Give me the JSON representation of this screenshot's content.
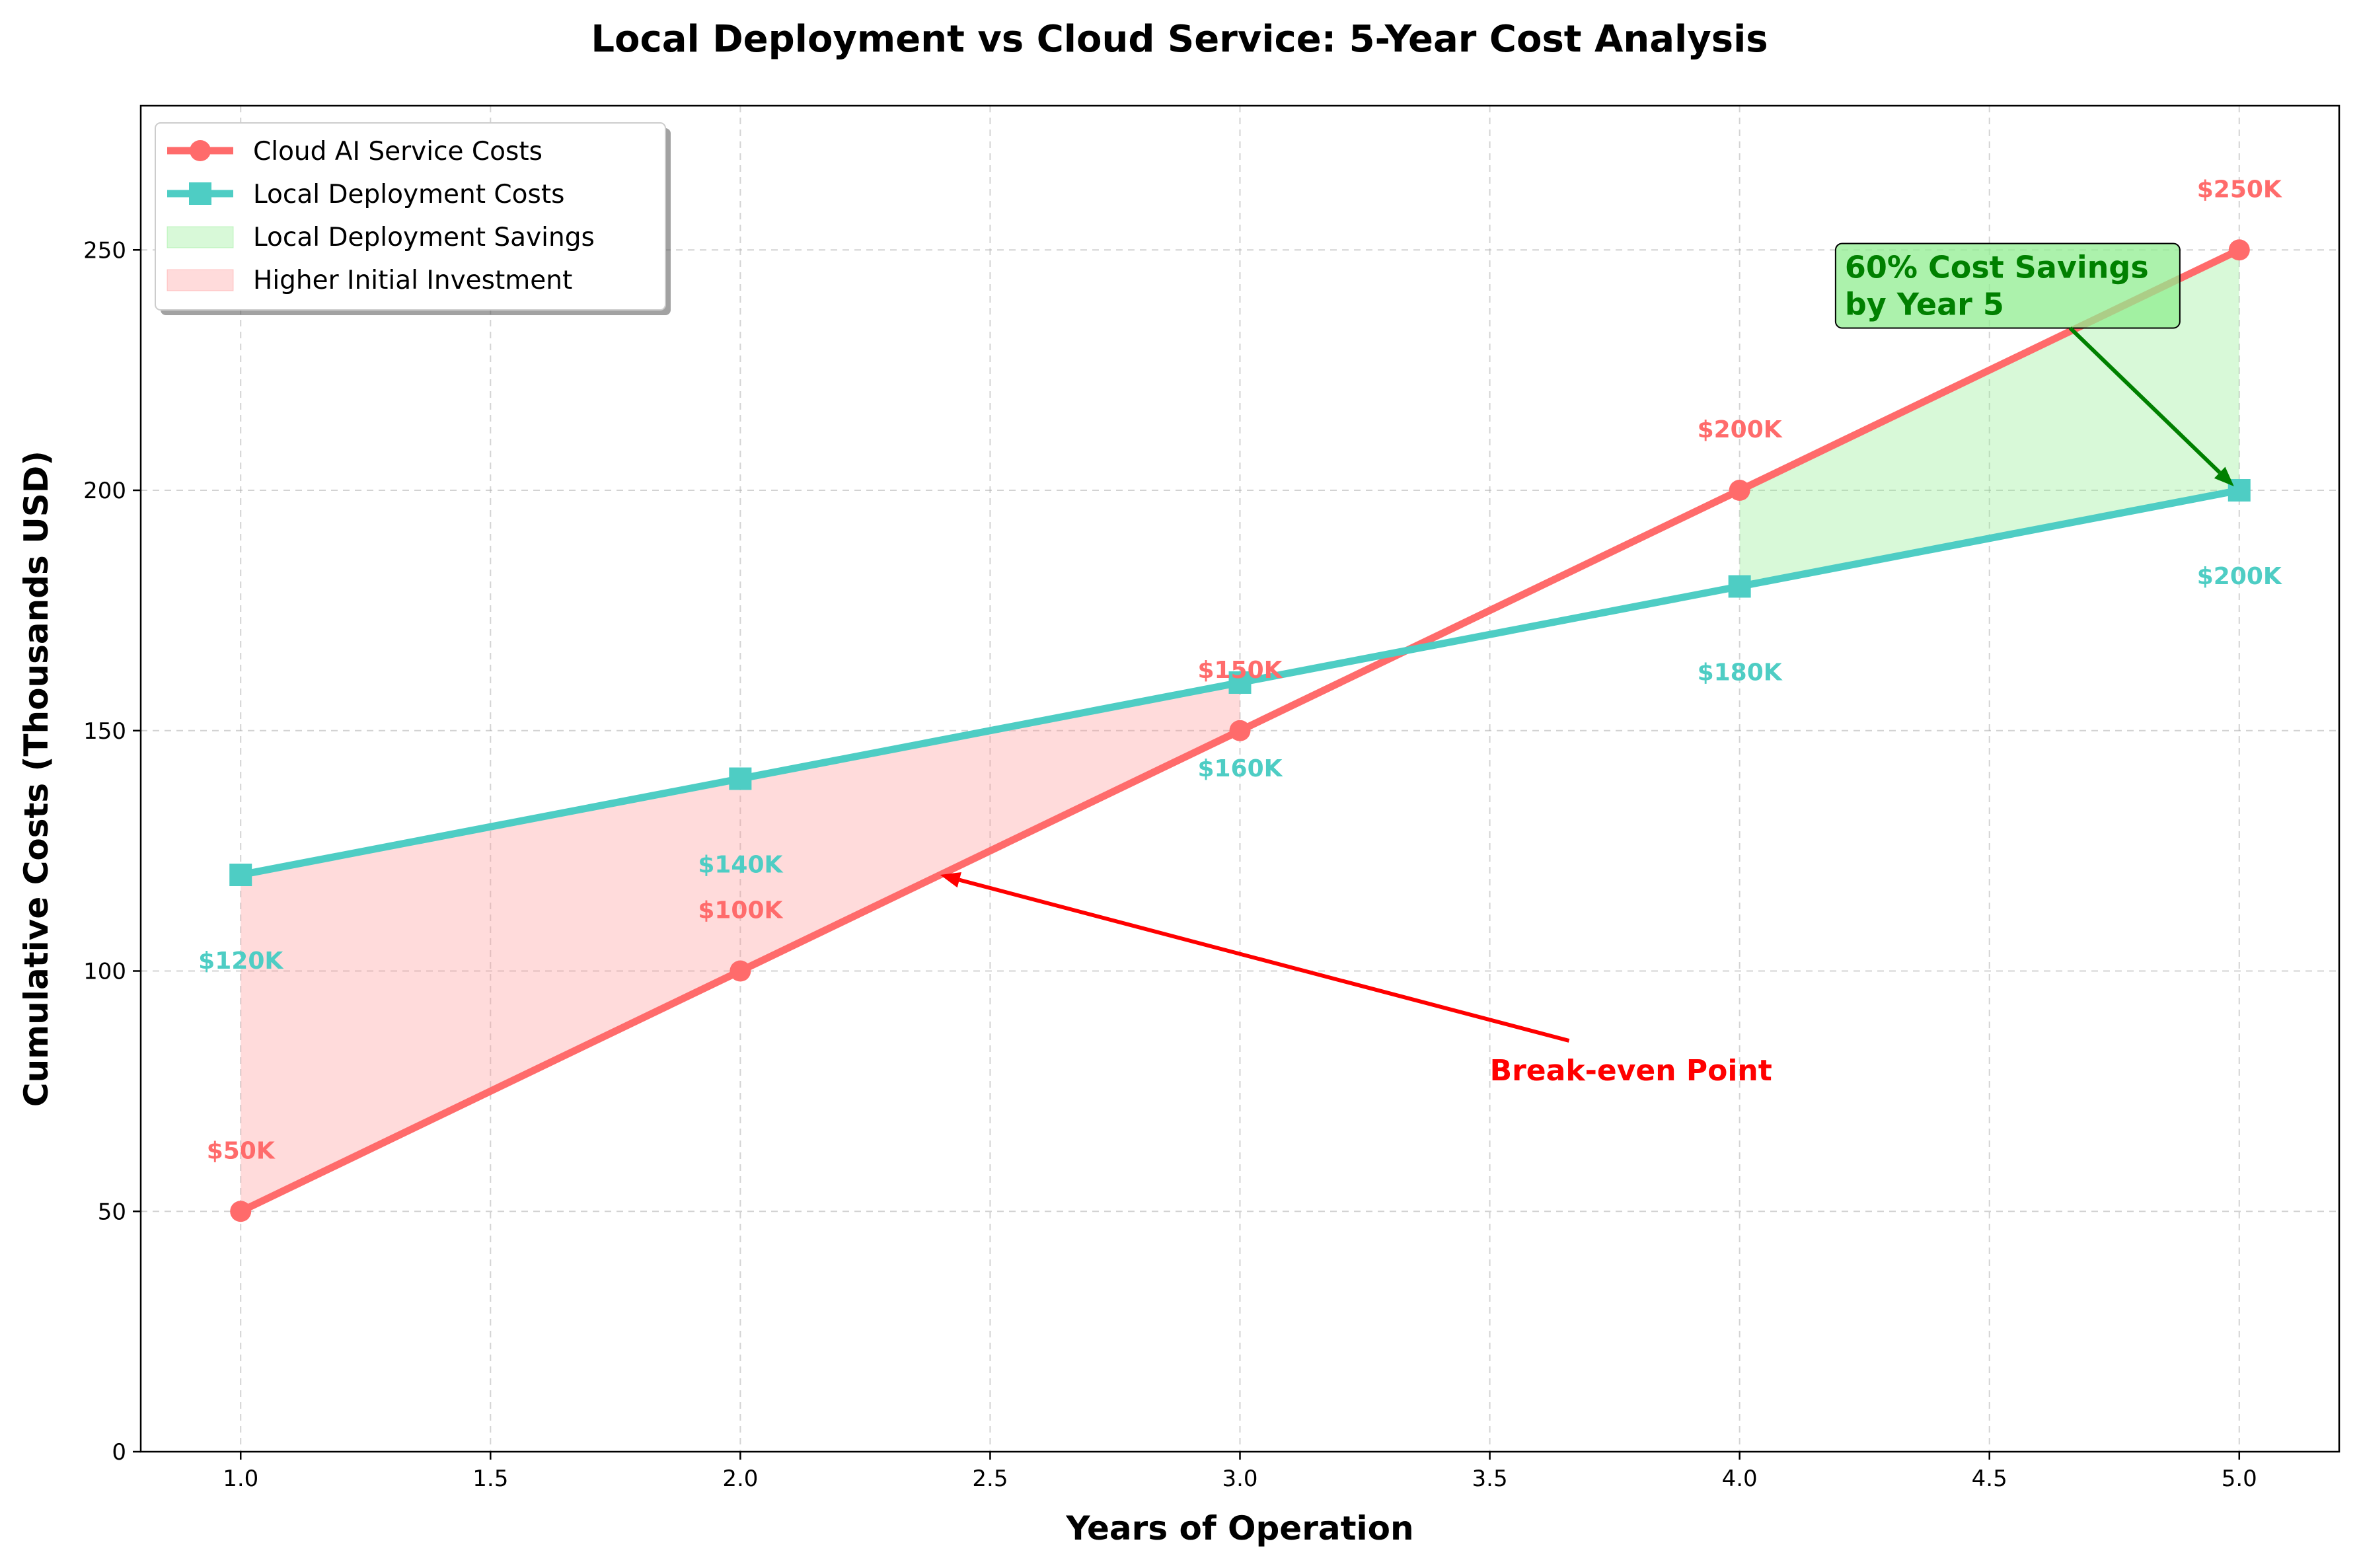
{
  "chart_data": {
    "type": "line",
    "title": "Local Deployment vs Cloud Service: 5-Year Cost Analysis",
    "xlabel": "Years of Operation",
    "ylabel": "Cumulative Costs (Thousands USD)",
    "xlim": [
      0.8,
      5.2
    ],
    "ylim": [
      0,
      280
    ],
    "xticks": [
      1.0,
      1.5,
      2.0,
      2.5,
      3.0,
      3.5,
      4.0,
      4.5,
      5.0
    ],
    "xtick_labels": [
      "1.0",
      "1.5",
      "2.0",
      "2.5",
      "3.0",
      "3.5",
      "4.0",
      "4.5",
      "5.0"
    ],
    "yticks": [
      0,
      50,
      100,
      150,
      200,
      250
    ],
    "ytick_labels": [
      "0",
      "50",
      "100",
      "150",
      "200",
      "250"
    ],
    "grid": true,
    "legend_position": "top-left",
    "x": [
      1,
      2,
      3,
      4,
      5
    ],
    "series": [
      {
        "name": "Cloud AI Service Costs",
        "values": [
          50,
          100,
          150,
          200,
          250
        ],
        "color": "#ff6b6b",
        "marker": "circle",
        "labels": [
          "$50K",
          "$100K",
          "$150K",
          "$200K",
          "$250K"
        ]
      },
      {
        "name": "Local Deployment Costs",
        "values": [
          120,
          140,
          160,
          180,
          200
        ],
        "color": "#4ecdc4",
        "marker": "square",
        "labels": [
          "$120K",
          "$140K",
          "$160K",
          "$180K",
          "$200K"
        ]
      }
    ],
    "fills": [
      {
        "name": "Local Deployment Savings",
        "x_range": [
          4,
          5
        ],
        "color": "#90ee90"
      },
      {
        "name": "Higher Initial Investment",
        "x_range": [
          1,
          3
        ],
        "color": "#ff9999"
      }
    ],
    "annotations": [
      {
        "text": "Break-even Point",
        "target": [
          2.4,
          120
        ],
        "text_at": [
          3.5,
          80
        ],
        "color": "#ff0000"
      },
      {
        "text_lines": [
          "60% Cost Savings",
          "by Year 5"
        ],
        "target": [
          5,
          200
        ],
        "text_at": [
          4.2,
          242
        ],
        "color": "#008000",
        "box_color": "#90ee90"
      }
    ]
  }
}
